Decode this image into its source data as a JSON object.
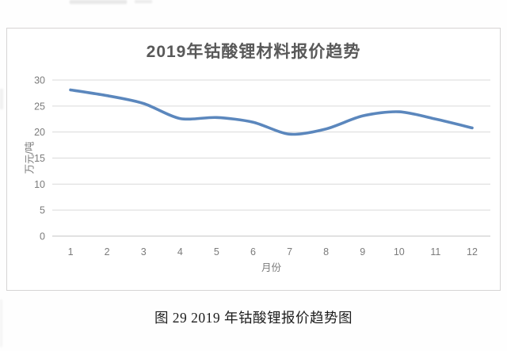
{
  "page": {
    "caption": "图 29 2019 年钴酸锂报价趋势图"
  },
  "chart": {
    "title": "2019年钴酸锂材料报价趋势",
    "x_axis_title": "月份",
    "y_axis_title": "万元/吨"
  },
  "chart_data": {
    "type": "line",
    "title": "2019年钴酸锂材料报价趋势",
    "xlabel": "月份",
    "ylabel": "万元/吨",
    "categories": [
      "1",
      "2",
      "3",
      "4",
      "5",
      "6",
      "7",
      "8",
      "9",
      "10",
      "11",
      "12"
    ],
    "values": [
      28.1,
      27.0,
      25.5,
      22.6,
      22.8,
      21.9,
      19.6,
      20.6,
      23.1,
      23.9,
      22.5,
      20.8
    ],
    "series_name": "钴酸锂报价",
    "ylim": [
      0,
      30
    ],
    "yticks": [
      0,
      5,
      10,
      15,
      20,
      25,
      30
    ],
    "grid": true,
    "legend": false,
    "smooth": true
  },
  "colors": {
    "line": "#5b87bd",
    "title_text": "#595959",
    "axis_text": "#7b7b7b",
    "gridline": "#dadada",
    "axis_line": "#c3c3c3",
    "chart_border": "#d6d4d4"
  }
}
